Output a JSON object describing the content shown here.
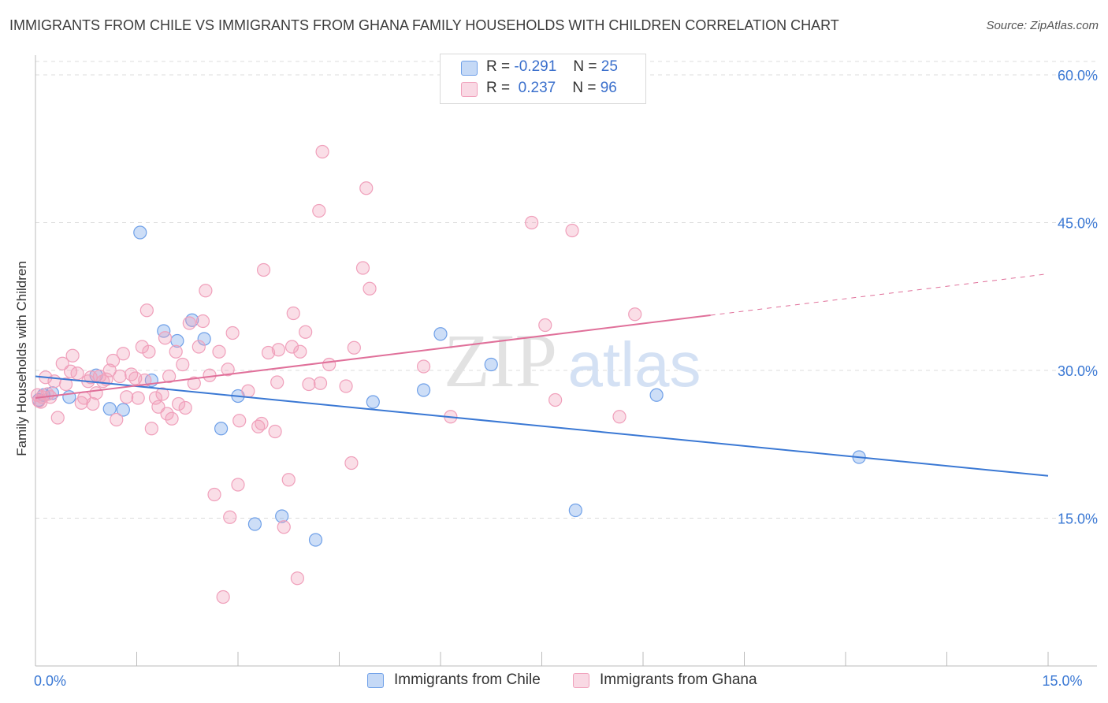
{
  "title": "IMMIGRANTS FROM CHILE VS IMMIGRANTS FROM GHANA FAMILY HOUSEHOLDS WITH CHILDREN CORRELATION CHART",
  "source": "Source: ZipAtlas.com",
  "watermark": {
    "zip": "ZIP",
    "atlas": "atlas"
  },
  "legend": [
    {
      "r_label": "R =",
      "r_value": "-0.291",
      "n_label": "N =",
      "n_value": "25",
      "color": "#6fa0e8"
    },
    {
      "r_label": "R =",
      "r_value": "0.237",
      "n_label": "N =",
      "n_value": "96",
      "color": "#f0a0bb"
    }
  ],
  "chart_data": {
    "type": "scatter",
    "xlabel": "",
    "ylabel": "Family Households with Children",
    "xlim": [
      0,
      15
    ],
    "ylim": [
      0,
      62
    ],
    "x_ticks": [
      {
        "v": 0,
        "label": "0.0%"
      },
      {
        "v": 15,
        "label": "15.0%"
      }
    ],
    "y_ticks": [
      {
        "v": 15,
        "label": "15.0%"
      },
      {
        "v": 30,
        "label": "30.0%"
      },
      {
        "v": 45,
        "label": "45.0%"
      },
      {
        "v": 60,
        "label": "60.0%"
      }
    ],
    "grid": true,
    "legend_position": "top-center",
    "series": [
      {
        "name": "Immigrants from Chile",
        "color": "#6fa0e8",
        "line_color": "#3a78d4",
        "trend": {
          "x": [
            0.0,
            15.0
          ],
          "y": [
            29.4,
            19.3
          ]
        },
        "points": [
          {
            "x": 0.05,
            "y": 27.0
          },
          {
            "x": 0.12,
            "y": 27.5
          },
          {
            "x": 0.25,
            "y": 27.7
          },
          {
            "x": 0.5,
            "y": 27.3
          },
          {
            "x": 0.9,
            "y": 29.5
          },
          {
            "x": 1.1,
            "y": 26.1
          },
          {
            "x": 1.3,
            "y": 26.0
          },
          {
            "x": 1.55,
            "y": 44.0
          },
          {
            "x": 1.72,
            "y": 29.0
          },
          {
            "x": 1.9,
            "y": 34.0
          },
          {
            "x": 2.1,
            "y": 33.0
          },
          {
            "x": 2.32,
            "y": 35.1
          },
          {
            "x": 2.5,
            "y": 33.2
          },
          {
            "x": 2.75,
            "y": 24.1
          },
          {
            "x": 3.0,
            "y": 27.4
          },
          {
            "x": 3.25,
            "y": 14.4
          },
          {
            "x": 3.65,
            "y": 15.2
          },
          {
            "x": 4.15,
            "y": 12.8
          },
          {
            "x": 5.0,
            "y": 26.8
          },
          {
            "x": 5.75,
            "y": 28.0
          },
          {
            "x": 6.0,
            "y": 33.7
          },
          {
            "x": 6.75,
            "y": 30.6
          },
          {
            "x": 8.0,
            "y": 15.8
          },
          {
            "x": 9.2,
            "y": 27.5
          },
          {
            "x": 12.2,
            "y": 21.2
          }
        ]
      },
      {
        "name": "Immigrants from Ghana",
        "color": "#f0a0bb",
        "line_color": "#e0709a",
        "trend": {
          "x": [
            0.0,
            10.0
          ],
          "y": [
            27.2,
            35.6
          ]
        },
        "trend_dashed": {
          "x": [
            10.0,
            15.0
          ],
          "y": [
            35.6,
            39.8
          ]
        },
        "points": [
          {
            "x": 0.03,
            "y": 27.5
          },
          {
            "x": 0.08,
            "y": 26.8
          },
          {
            "x": 0.15,
            "y": 29.3
          },
          {
            "x": 0.22,
            "y": 27.3
          },
          {
            "x": 0.28,
            "y": 28.9
          },
          {
            "x": 0.33,
            "y": 25.2
          },
          {
            "x": 0.4,
            "y": 30.7
          },
          {
            "x": 0.45,
            "y": 28.6
          },
          {
            "x": 0.52,
            "y": 29.9
          },
          {
            "x": 0.55,
            "y": 31.5
          },
          {
            "x": 0.62,
            "y": 29.7
          },
          {
            "x": 0.68,
            "y": 26.7
          },
          {
            "x": 0.72,
            "y": 27.2
          },
          {
            "x": 0.78,
            "y": 28.9
          },
          {
            "x": 0.82,
            "y": 29.3
          },
          {
            "x": 0.85,
            "y": 26.6
          },
          {
            "x": 0.9,
            "y": 27.7
          },
          {
            "x": 0.95,
            "y": 29.4
          },
          {
            "x": 1.0,
            "y": 28.9
          },
          {
            "x": 1.05,
            "y": 29.1
          },
          {
            "x": 1.1,
            "y": 30.0
          },
          {
            "x": 1.15,
            "y": 31.0
          },
          {
            "x": 1.2,
            "y": 25.0
          },
          {
            "x": 1.25,
            "y": 29.4
          },
          {
            "x": 1.3,
            "y": 31.7
          },
          {
            "x": 1.35,
            "y": 27.3
          },
          {
            "x": 1.42,
            "y": 29.6
          },
          {
            "x": 1.48,
            "y": 29.2
          },
          {
            "x": 1.52,
            "y": 27.2
          },
          {
            "x": 1.58,
            "y": 32.4
          },
          {
            "x": 1.62,
            "y": 29.0
          },
          {
            "x": 1.65,
            "y": 36.1
          },
          {
            "x": 1.68,
            "y": 31.9
          },
          {
            "x": 1.72,
            "y": 24.1
          },
          {
            "x": 1.78,
            "y": 27.2
          },
          {
            "x": 1.82,
            "y": 26.3
          },
          {
            "x": 1.88,
            "y": 27.6
          },
          {
            "x": 1.92,
            "y": 33.3
          },
          {
            "x": 1.95,
            "y": 25.6
          },
          {
            "x": 1.98,
            "y": 29.4
          },
          {
            "x": 2.02,
            "y": 25.1
          },
          {
            "x": 2.08,
            "y": 31.9
          },
          {
            "x": 2.12,
            "y": 26.6
          },
          {
            "x": 2.18,
            "y": 30.6
          },
          {
            "x": 2.22,
            "y": 26.2
          },
          {
            "x": 2.28,
            "y": 34.8
          },
          {
            "x": 2.35,
            "y": 28.7
          },
          {
            "x": 2.42,
            "y": 32.4
          },
          {
            "x": 2.48,
            "y": 35.0
          },
          {
            "x": 2.52,
            "y": 38.1
          },
          {
            "x": 2.58,
            "y": 29.5
          },
          {
            "x": 2.65,
            "y": 17.4
          },
          {
            "x": 2.72,
            "y": 31.9
          },
          {
            "x": 2.78,
            "y": 7.0
          },
          {
            "x": 2.85,
            "y": 30.1
          },
          {
            "x": 2.88,
            "y": 15.1
          },
          {
            "x": 2.92,
            "y": 33.8
          },
          {
            "x": 3.0,
            "y": 18.4
          },
          {
            "x": 3.02,
            "y": 24.9
          },
          {
            "x": 3.15,
            "y": 27.9
          },
          {
            "x": 3.3,
            "y": 24.3
          },
          {
            "x": 3.35,
            "y": 24.6
          },
          {
            "x": 3.38,
            "y": 40.2
          },
          {
            "x": 3.45,
            "y": 31.8
          },
          {
            "x": 3.55,
            "y": 23.8
          },
          {
            "x": 3.58,
            "y": 28.8
          },
          {
            "x": 3.6,
            "y": 32.1
          },
          {
            "x": 3.68,
            "y": 14.1
          },
          {
            "x": 3.75,
            "y": 18.9
          },
          {
            "x": 3.8,
            "y": 32.4
          },
          {
            "x": 3.82,
            "y": 35.8
          },
          {
            "x": 3.88,
            "y": 8.9
          },
          {
            "x": 3.92,
            "y": 31.9
          },
          {
            "x": 4.0,
            "y": 33.9
          },
          {
            "x": 4.05,
            "y": 28.6
          },
          {
            "x": 4.2,
            "y": 46.2
          },
          {
            "x": 4.22,
            "y": 28.7
          },
          {
            "x": 4.25,
            "y": 52.2
          },
          {
            "x": 4.35,
            "y": 30.6
          },
          {
            "x": 4.6,
            "y": 28.4
          },
          {
            "x": 4.68,
            "y": 20.6
          },
          {
            "x": 4.72,
            "y": 32.3
          },
          {
            "x": 4.85,
            "y": 40.4
          },
          {
            "x": 4.9,
            "y": 48.5
          },
          {
            "x": 4.95,
            "y": 38.3
          },
          {
            "x": 5.75,
            "y": 30.4
          },
          {
            "x": 6.15,
            "y": 25.3
          },
          {
            "x": 7.35,
            "y": 45.0
          },
          {
            "x": 7.55,
            "y": 34.6
          },
          {
            "x": 7.7,
            "y": 27.0
          },
          {
            "x": 7.95,
            "y": 44.2
          },
          {
            "x": 8.65,
            "y": 25.3
          },
          {
            "x": 8.88,
            "y": 35.7
          },
          {
            "x": 0.05,
            "y": 26.9
          },
          {
            "x": 0.1,
            "y": 27.3
          },
          {
            "x": 0.18,
            "y": 27.6
          }
        ]
      }
    ]
  }
}
